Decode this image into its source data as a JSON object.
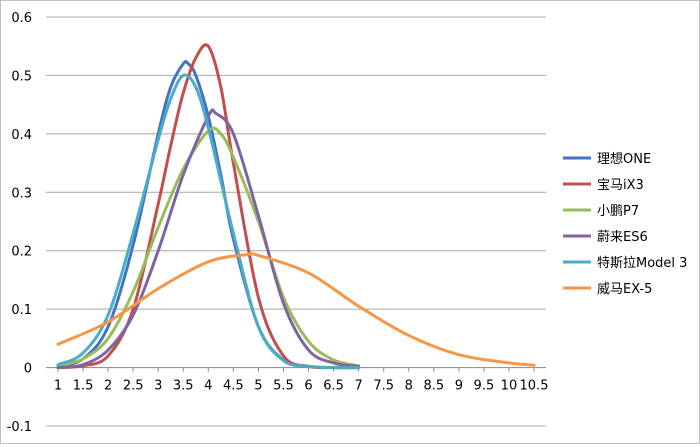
{
  "chart_data": {
    "type": "line",
    "title": "",
    "xlabel": "",
    "ylabel": "",
    "xlim": [
      1,
      10.5
    ],
    "ylim": [
      -0.1,
      0.6
    ],
    "x_ticks": [
      "1",
      "1.5",
      "2",
      "2.5",
      "3",
      "3.5",
      "4",
      "4.5",
      "5",
      "5.5",
      "6",
      "6.5",
      "7",
      "7.5",
      "8",
      "8.5",
      "9",
      "9.5",
      "10",
      "10.5"
    ],
    "y_ticks": [
      "0.6",
      "0.5",
      "0.4",
      "0.3",
      "0.2",
      "0.1",
      "0",
      "-0.1"
    ],
    "grid": "horizontal",
    "legend_position": "right",
    "series": [
      {
        "name": "理想ONE",
        "color": "#4472C4",
        "x": [
          1,
          1.5,
          2,
          2.5,
          3,
          3.25,
          3.5,
          3.6,
          3.75,
          4,
          4.25,
          4.5,
          5,
          5.5,
          6,
          6.5,
          7
        ],
        "y": [
          0.003,
          0.015,
          0.07,
          0.21,
          0.4,
          0.48,
          0.52,
          0.52,
          0.5,
          0.43,
          0.33,
          0.22,
          0.07,
          0.013,
          0.002,
          0,
          0
        ]
      },
      {
        "name": "宝马iX3",
        "color": "#C0504D",
        "x": [
          1,
          1.5,
          2,
          2.5,
          3,
          3.25,
          3.5,
          3.75,
          4,
          4.25,
          4.5,
          5,
          5.5,
          6,
          6.5,
          7
        ],
        "y": [
          0,
          0.003,
          0.02,
          0.1,
          0.28,
          0.38,
          0.47,
          0.53,
          0.55,
          0.48,
          0.35,
          0.12,
          0.02,
          0.002,
          0,
          0
        ]
      },
      {
        "name": "小鹏P7",
        "color": "#9BBB59",
        "x": [
          1,
          1.5,
          2,
          2.5,
          3,
          3.5,
          4,
          4.25,
          4.5,
          5,
          5.5,
          6,
          6.5,
          7
        ],
        "y": [
          0.003,
          0.015,
          0.05,
          0.13,
          0.24,
          0.34,
          0.405,
          0.4,
          0.36,
          0.25,
          0.12,
          0.045,
          0.013,
          0.003
        ]
      },
      {
        "name": "蔚来ES6",
        "color": "#8064A2",
        "x": [
          1,
          1.5,
          2,
          2.5,
          3,
          3.5,
          4,
          4.15,
          4.5,
          5,
          5.5,
          6,
          6.5,
          7
        ],
        "y": [
          0,
          0.005,
          0.03,
          0.09,
          0.2,
          0.33,
          0.43,
          0.435,
          0.4,
          0.26,
          0.11,
          0.03,
          0.008,
          0.002
        ]
      },
      {
        "name": "特斯拉Model 3",
        "color": "#4BACC6",
        "x": [
          1,
          1.5,
          2,
          2.5,
          3,
          3.25,
          3.5,
          3.75,
          4,
          4.5,
          5,
          5.5,
          6,
          6.5,
          7
        ],
        "y": [
          0.005,
          0.025,
          0.09,
          0.23,
          0.39,
          0.46,
          0.5,
          0.48,
          0.41,
          0.23,
          0.07,
          0.012,
          0.002,
          0,
          0
        ]
      },
      {
        "name": "威马EX-5",
        "color": "#F79646",
        "x": [
          1,
          2,
          3,
          4,
          4.75,
          5,
          6,
          7,
          8,
          9,
          10,
          10.5
        ],
        "y": [
          0.04,
          0.078,
          0.135,
          0.181,
          0.193,
          0.192,
          0.162,
          0.105,
          0.055,
          0.022,
          0.008,
          0.004
        ]
      }
    ]
  }
}
